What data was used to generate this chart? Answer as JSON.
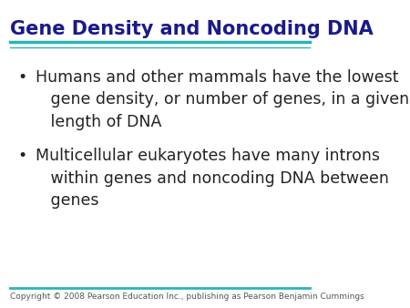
{
  "title": "Gene Density and Noncoding DNA",
  "title_color": "#1a1a8c",
  "title_fontsize": 15,
  "bullet1_line1": "Humans and other mammals have the lowest",
  "bullet1_line2": "gene density, or number of genes, in a given",
  "bullet1_line3": "length of DNA",
  "bullet2_line1": "Multicellular eukaryotes have many introns",
  "bullet2_line2": "within genes and noncoding DNA between",
  "bullet2_line3": "genes",
  "bullet_color": "#222222",
  "bullet_fontsize": 12.5,
  "line_color": "#2ab5b5",
  "copyright": "Copyright © 2008 Pearson Education Inc., publishing as Pearson Benjamin Cummings",
  "copyright_fontsize": 6.5,
  "background_color": "#ffffff"
}
